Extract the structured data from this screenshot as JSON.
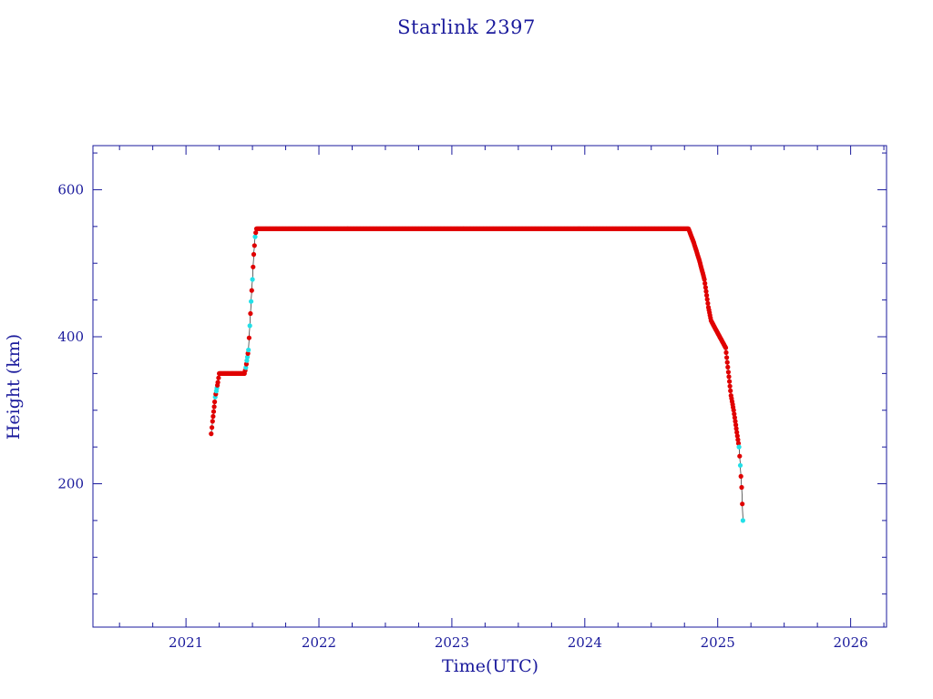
{
  "chart_data": {
    "type": "scatter",
    "title": "Starlink 2397",
    "xlabel": "Time(UTC)",
    "ylabel": "Height (km)",
    "xlim": [
      2020.3,
      2026.27
    ],
    "ylim": [
      5,
      660
    ],
    "x_ticks": [
      2021,
      2022,
      2023,
      2024,
      2025,
      2026
    ],
    "y_ticks": [
      200,
      400,
      600
    ],
    "grid": false,
    "legend": "none",
    "colors": {
      "axis": "#1a1a9c",
      "points": "#e00000",
      "points_alt": "#22e0e8",
      "line": "#000000"
    },
    "series": [
      {
        "x": [
          2021.19,
          2021.2,
          2021.22,
          2021.24,
          2021.25,
          2021.3,
          2021.35,
          2021.4,
          2021.44,
          2021.45,
          2021.47,
          2021.48,
          2021.49,
          2021.5,
          2021.51,
          2021.52,
          2021.53,
          2021.6,
          2021.8,
          2022.0,
          2022.5,
          2023.0,
          2023.5,
          2024.0,
          2024.5,
          2024.78,
          2024.82,
          2024.86,
          2024.9,
          2024.93,
          2024.95,
          2024.97,
          2025.0,
          2025.03,
          2025.06,
          2025.08,
          2025.1,
          2025.12,
          2025.14,
          2025.16,
          2025.17,
          2025.18,
          2025.19
        ],
        "y": [
          268,
          285,
          318,
          338,
          350,
          350,
          350,
          350,
          350,
          358,
          382,
          415,
          448,
          478,
          512,
          536,
          547,
          547,
          547,
          547,
          547,
          547,
          547,
          547,
          547,
          547,
          528,
          505,
          478,
          440,
          422,
          415,
          405,
          395,
          385,
          352,
          320,
          300,
          275,
          250,
          225,
          195,
          150
        ]
      }
    ],
    "cyan_x": [
      2021.22,
      2021.23,
      2021.45,
      2021.46,
      2021.47,
      2021.48,
      2021.49,
      2021.5,
      2021.52,
      2025.16,
      2025.17,
      2025.19
    ]
  }
}
